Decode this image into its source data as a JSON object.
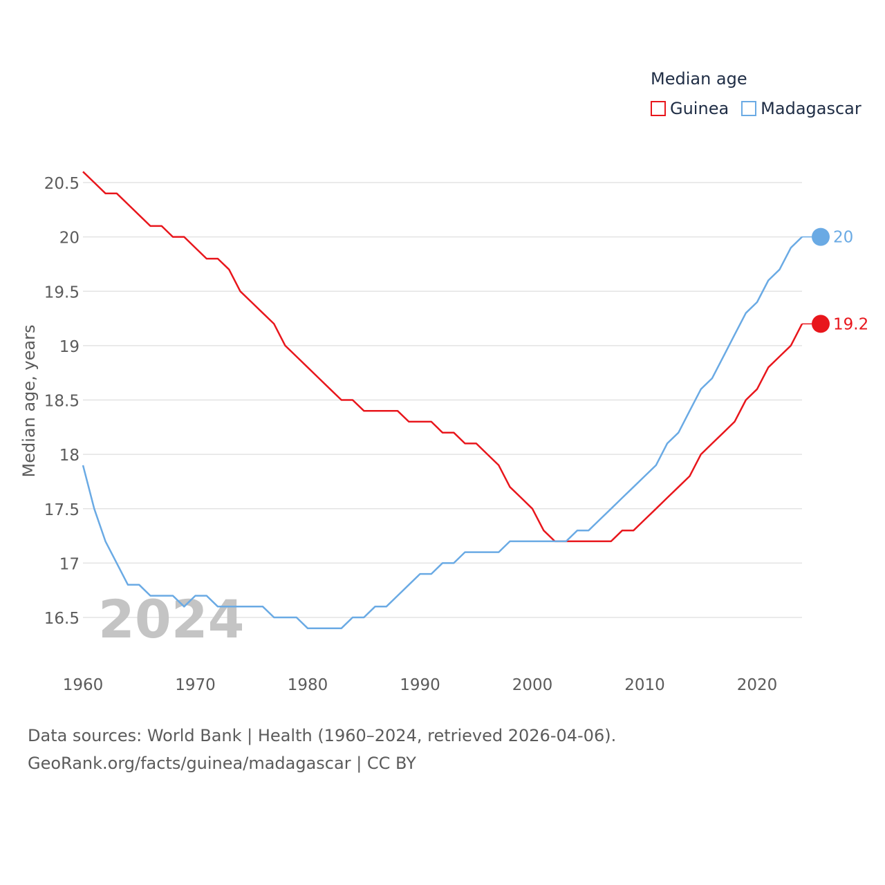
{
  "legend": {
    "title": "Median age",
    "items": [
      {
        "name": "Guinea",
        "color": "#e8161c"
      },
      {
        "name": "Madagascar",
        "color": "#6aaae4"
      }
    ]
  },
  "source": {
    "line1": "Data sources: World Bank | Health (1960–2024, retrieved 2026-04-06).",
    "line2": "GeoRank.org/facts/guinea/madagascar | CC BY"
  },
  "chart_data": {
    "type": "line",
    "title": "Median age",
    "xlabel": "",
    "ylabel": "Median age, years",
    "year_label": "2024",
    "xlim": [
      1960,
      2024
    ],
    "ylim": [
      16.1,
      20.6
    ],
    "grid": true,
    "legend_position": "top-right",
    "x_ticks": [
      1960,
      1970,
      1980,
      1990,
      2000,
      2010,
      2020
    ],
    "y_ticks": [
      16.5,
      17,
      17.5,
      18,
      18.5,
      19,
      19.5,
      20,
      20.5
    ],
    "x_tick_labels": [
      "1960",
      "1970",
      "1980",
      "1990",
      "2000",
      "2010",
      "2020"
    ],
    "y_tick_labels": [
      "16.5",
      "17",
      "17.5",
      "18",
      "18.5",
      "19",
      "19.5",
      "20",
      "20.5"
    ],
    "x": [
      1960,
      1961,
      1962,
      1963,
      1964,
      1965,
      1966,
      1967,
      1968,
      1969,
      1970,
      1971,
      1972,
      1973,
      1974,
      1975,
      1976,
      1977,
      1978,
      1979,
      1980,
      1981,
      1982,
      1983,
      1984,
      1985,
      1986,
      1987,
      1988,
      1989,
      1990,
      1991,
      1992,
      1993,
      1994,
      1995,
      1996,
      1997,
      1998,
      1999,
      2000,
      2001,
      2002,
      2003,
      2004,
      2005,
      2006,
      2007,
      2008,
      2009,
      2010,
      2011,
      2012,
      2013,
      2014,
      2015,
      2016,
      2017,
      2018,
      2019,
      2020,
      2021,
      2022,
      2023,
      2024
    ],
    "series": [
      {
        "name": "Guinea",
        "color": "#e8161c",
        "end_label": "19.2",
        "values": [
          20.6,
          20.5,
          20.4,
          20.4,
          20.3,
          20.2,
          20.1,
          20.1,
          20.0,
          20.0,
          19.9,
          19.8,
          19.8,
          19.7,
          19.5,
          19.4,
          19.3,
          19.2,
          19.0,
          18.9,
          18.8,
          18.7,
          18.6,
          18.5,
          18.5,
          18.4,
          18.4,
          18.4,
          18.4,
          18.3,
          18.3,
          18.3,
          18.2,
          18.2,
          18.1,
          18.1,
          18.0,
          17.9,
          17.7,
          17.6,
          17.5,
          17.3,
          17.2,
          17.2,
          17.2,
          17.2,
          17.2,
          17.2,
          17.3,
          17.3,
          17.4,
          17.5,
          17.6,
          17.7,
          17.8,
          18.0,
          18.1,
          18.2,
          18.3,
          18.5,
          18.6,
          18.8,
          18.9,
          19.0,
          19.2
        ]
      },
      {
        "name": "Madagascar",
        "color": "#6aaae4",
        "end_label": "20",
        "values": [
          17.9,
          17.5,
          17.2,
          17.0,
          16.8,
          16.8,
          16.7,
          16.7,
          16.7,
          16.6,
          16.7,
          16.7,
          16.6,
          16.6,
          16.6,
          16.6,
          16.6,
          16.5,
          16.5,
          16.5,
          16.4,
          16.4,
          16.4,
          16.4,
          16.5,
          16.5,
          16.6,
          16.6,
          16.7,
          16.8,
          16.9,
          16.9,
          17.0,
          17.0,
          17.1,
          17.1,
          17.1,
          17.1,
          17.2,
          17.2,
          17.2,
          17.2,
          17.2,
          17.2,
          17.3,
          17.3,
          17.4,
          17.5,
          17.6,
          17.7,
          17.8,
          17.9,
          18.1,
          18.2,
          18.4,
          18.6,
          18.7,
          18.9,
          19.1,
          19.3,
          19.4,
          19.6,
          19.7,
          19.9,
          20.0
        ]
      }
    ]
  }
}
